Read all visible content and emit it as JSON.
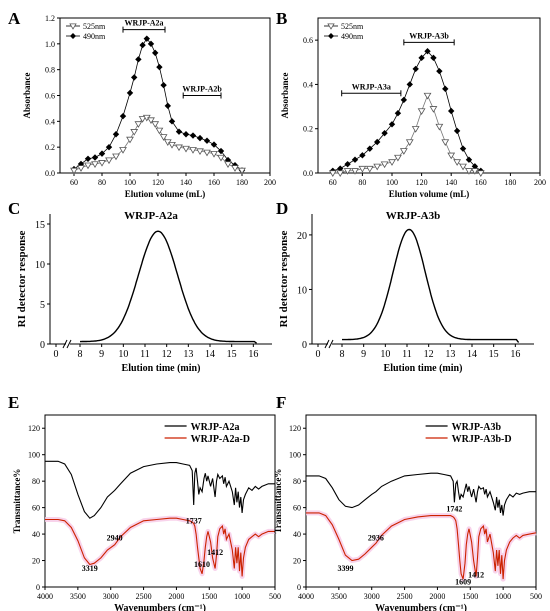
{
  "chart_data": [
    {
      "panel": "A",
      "type": "scatter-line",
      "xlabel": "Elution volume (mL)",
      "ylabel": "Absorbance",
      "xlim": [
        50,
        200
      ],
      "ylim": [
        0,
        1.2
      ],
      "xticks": [
        60,
        80,
        100,
        120,
        140,
        160,
        180,
        200
      ],
      "yticks": [
        0.0,
        0.2,
        0.4,
        0.6,
        0.8,
        1.0,
        1.2
      ],
      "legend": [
        "525nm",
        "490nm"
      ],
      "legend_placement": "top-left",
      "annotations": [
        {
          "text": "WRJP-A2a",
          "x": [
            95,
            125
          ],
          "y": 1.11
        },
        {
          "text": "WRJP-A2b",
          "x": [
            138,
            165
          ],
          "y": 0.6
        }
      ],
      "series": [
        {
          "name": "490nm",
          "marker": "diamond",
          "x": [
            60,
            65,
            70,
            75,
            80,
            85,
            90,
            95,
            100,
            103,
            106,
            109,
            112,
            115,
            118,
            121,
            124,
            127,
            130,
            135,
            140,
            145,
            150,
            155,
            160,
            165,
            170,
            175,
            180
          ],
          "y": [
            0.03,
            0.07,
            0.11,
            0.12,
            0.15,
            0.2,
            0.3,
            0.44,
            0.62,
            0.74,
            0.88,
            0.99,
            1.04,
            1.0,
            0.93,
            0.82,
            0.68,
            0.52,
            0.4,
            0.32,
            0.3,
            0.29,
            0.27,
            0.25,
            0.22,
            0.17,
            0.1,
            0.06,
            0.02
          ]
        },
        {
          "name": "525nm",
          "marker": "triangle-down",
          "x": [
            60,
            65,
            70,
            75,
            80,
            85,
            90,
            95,
            100,
            103,
            106,
            109,
            112,
            115,
            118,
            121,
            124,
            127,
            130,
            135,
            140,
            145,
            150,
            155,
            160,
            165,
            170,
            175,
            180
          ],
          "y": [
            0.02,
            0.04,
            0.06,
            0.07,
            0.08,
            0.1,
            0.13,
            0.18,
            0.26,
            0.32,
            0.38,
            0.42,
            0.43,
            0.41,
            0.38,
            0.33,
            0.28,
            0.24,
            0.22,
            0.2,
            0.19,
            0.18,
            0.17,
            0.16,
            0.15,
            0.12,
            0.07,
            0.04,
            0.02
          ]
        }
      ]
    },
    {
      "panel": "B",
      "type": "scatter-line",
      "xlabel": "Elution volume (mL)",
      "ylabel": "Absorbance",
      "xlim": [
        50,
        200
      ],
      "ylim": [
        0,
        0.7
      ],
      "xticks": [
        60,
        80,
        100,
        120,
        140,
        160,
        180,
        200
      ],
      "yticks": [
        0.0,
        0.2,
        0.4,
        0.6
      ],
      "legend": [
        "525nm",
        "490nm"
      ],
      "legend_placement": "top-left",
      "annotations": [
        {
          "text": "WRJP-A3a",
          "x": [
            66,
            106
          ],
          "y": 0.36
        },
        {
          "text": "WRJP-A3b",
          "x": [
            108,
            142
          ],
          "y": 0.59
        }
      ],
      "series": [
        {
          "name": "490nm",
          "marker": "diamond",
          "x": [
            60,
            65,
            70,
            75,
            80,
            85,
            90,
            95,
            100,
            104,
            108,
            112,
            116,
            120,
            124,
            128,
            132,
            136,
            140,
            144,
            148,
            152,
            156,
            160
          ],
          "y": [
            0.01,
            0.02,
            0.04,
            0.06,
            0.08,
            0.11,
            0.14,
            0.18,
            0.22,
            0.27,
            0.33,
            0.4,
            0.47,
            0.52,
            0.55,
            0.52,
            0.46,
            0.38,
            0.28,
            0.19,
            0.11,
            0.06,
            0.03,
            0.01
          ]
        },
        {
          "name": "525nm",
          "marker": "triangle-down",
          "x": [
            60,
            65,
            70,
            75,
            80,
            85,
            90,
            95,
            100,
            104,
            108,
            112,
            116,
            120,
            124,
            128,
            132,
            136,
            140,
            144,
            148,
            152,
            156,
            160
          ],
          "y": [
            0.0,
            0.0,
            0.01,
            0.01,
            0.02,
            0.02,
            0.03,
            0.04,
            0.05,
            0.07,
            0.1,
            0.14,
            0.2,
            0.28,
            0.35,
            0.29,
            0.21,
            0.14,
            0.08,
            0.05,
            0.03,
            0.01,
            0.01,
            0.0
          ]
        }
      ]
    },
    {
      "panel": "C",
      "type": "line",
      "title": "WRJP-A2a",
      "xlabel": "Elution time (min)",
      "ylabel": "RI detector response",
      "ylim": [
        0,
        15
      ],
      "yticks": [
        0,
        5,
        10,
        15
      ],
      "xticks": [
        "0",
        "8",
        "9",
        "10",
        "11",
        "12",
        "13",
        "14",
        "15",
        "16"
      ],
      "axis_break": "between 0 and 8",
      "peak": {
        "x": 11.6,
        "y": 13.8,
        "sigma": 0.9,
        "baseline": 0.3,
        "x_range": [
          8,
          16.2
        ]
      }
    },
    {
      "panel": "D",
      "type": "line",
      "title": "WRJP-A3b",
      "xlabel": "Elution time (min)",
      "ylabel": "RI detector response",
      "ylim": [
        0,
        22
      ],
      "yticks": [
        0,
        10,
        20
      ],
      "xticks": [
        "0",
        "8",
        "9",
        "10",
        "11",
        "12",
        "13",
        "14",
        "15",
        "16"
      ],
      "axis_break": "between 0 and 8",
      "peak": {
        "x": 11.1,
        "y": 20.2,
        "sigma": 0.75,
        "baseline": 0.8,
        "x_range": [
          8,
          16.2
        ]
      }
    },
    {
      "panel": "E",
      "type": "line",
      "xlabel": "Wavenumbers (cm⁻¹)",
      "ylabel": "Transmittance%",
      "xlim": [
        4000,
        500
      ],
      "ylim": [
        0,
        130
      ],
      "xticks": [
        4000,
        3500,
        3000,
        2500,
        2000,
        1500,
        1000,
        500
      ],
      "yticks": [
        0,
        20,
        40,
        60,
        80,
        100,
        120
      ],
      "legend": [
        "WRJP-A2a",
        "WRJP-A2a-D"
      ],
      "legend_placement": "top-right",
      "annotations": [
        {
          "text": "3319",
          "x": 3319,
          "y": 12
        },
        {
          "text": "2940",
          "x": 2940,
          "y": 35
        },
        {
          "text": "1737",
          "x": 1737,
          "y": 48
        },
        {
          "text": "1610",
          "x": 1610,
          "y": 15
        },
        {
          "text": "1412",
          "x": 1412,
          "y": 24
        }
      ],
      "series": [
        {
          "name": "WRJP-A2a",
          "color": "#000000",
          "x": [
            4000,
            3800,
            3700,
            3600,
            3500,
            3400,
            3319,
            3250,
            3150,
            3050,
            2940,
            2850,
            2700,
            2500,
            2300,
            2100,
            2000,
            1900,
            1800,
            1760,
            1737,
            1720,
            1700,
            1680,
            1660,
            1640,
            1610,
            1580,
            1560,
            1540,
            1520,
            1480,
            1450,
            1412,
            1390,
            1370,
            1340,
            1300,
            1280,
            1260,
            1240,
            1200,
            1150,
            1120,
            1100,
            1080,
            1060,
            1040,
            1020,
            1000,
            980,
            950,
            900,
            850,
            800,
            750,
            700,
            600,
            500
          ],
          "y": [
            95,
            95,
            93,
            85,
            70,
            57,
            52,
            54,
            60,
            68,
            73,
            78,
            86,
            91,
            93,
            94,
            94,
            93,
            92,
            88,
            62,
            86,
            90,
            80,
            70,
            75,
            72,
            82,
            86,
            80,
            84,
            76,
            82,
            68,
            80,
            85,
            82,
            84,
            78,
            83,
            76,
            80,
            72,
            62,
            75,
            64,
            72,
            60,
            68,
            56,
            66,
            70,
            75,
            73,
            76,
            74,
            76,
            78,
            78
          ]
        },
        {
          "name": "WRJP-A2a-D",
          "color": "#cc2200",
          "x": [
            4000,
            3800,
            3700,
            3600,
            3500,
            3400,
            3319,
            3250,
            3150,
            3050,
            2940,
            2850,
            2700,
            2500,
            2300,
            2100,
            2000,
            1900,
            1800,
            1760,
            1737,
            1720,
            1700,
            1680,
            1660,
            1640,
            1610,
            1580,
            1560,
            1540,
            1520,
            1480,
            1450,
            1412,
            1390,
            1370,
            1340,
            1300,
            1280,
            1260,
            1240,
            1200,
            1150,
            1120,
            1100,
            1080,
            1060,
            1040,
            1020,
            1000,
            980,
            950,
            900,
            850,
            800,
            750,
            700,
            600,
            500
          ],
          "y": [
            51,
            51,
            50,
            45,
            35,
            22,
            17,
            18,
            22,
            28,
            32,
            38,
            45,
            50,
            51,
            52,
            52,
            51,
            50,
            49,
            48,
            46,
            40,
            30,
            22,
            14,
            10,
            20,
            30,
            38,
            42,
            34,
            22,
            14,
            24,
            38,
            44,
            46,
            40,
            44,
            36,
            40,
            28,
            14,
            30,
            18,
            30,
            12,
            26,
            8,
            22,
            30,
            36,
            38,
            40,
            38,
            40,
            42,
            42
          ]
        }
      ]
    },
    {
      "panel": "F",
      "type": "line",
      "xlabel": "Wavenumbers (cm⁻¹)",
      "ylabel": "Transmittance%",
      "xlim": [
        4000,
        500
      ],
      "ylim": [
        0,
        130
      ],
      "xticks": [
        4000,
        3500,
        3000,
        2500,
        2000,
        1500,
        1000,
        500
      ],
      "yticks": [
        0,
        20,
        40,
        60,
        80,
        100,
        120
      ],
      "legend": [
        "WRJP-A3b",
        "WRJP-A3b-D"
      ],
      "legend_placement": "top-right",
      "annotations": [
        {
          "text": "3399",
          "x": 3399,
          "y": 12
        },
        {
          "text": "2936",
          "x": 2936,
          "y": 35
        },
        {
          "text": "1742",
          "x": 1742,
          "y": 57
        },
        {
          "text": "1609",
          "x": 1609,
          "y": 2
        },
        {
          "text": "1412",
          "x": 1412,
          "y": 7
        }
      ],
      "series": [
        {
          "name": "WRJP-A3b",
          "color": "#000000",
          "x": [
            4000,
            3800,
            3700,
            3600,
            3500,
            3400,
            3300,
            3200,
            3100,
            3000,
            2936,
            2850,
            2700,
            2500,
            2300,
            2100,
            2000,
            1900,
            1800,
            1760,
            1742,
            1720,
            1700,
            1680,
            1660,
            1640,
            1609,
            1580,
            1560,
            1540,
            1520,
            1480,
            1450,
            1412,
            1390,
            1370,
            1340,
            1300,
            1280,
            1260,
            1240,
            1200,
            1150,
            1120,
            1100,
            1080,
            1060,
            1040,
            1020,
            1000,
            980,
            950,
            900,
            850,
            800,
            750,
            700,
            600,
            500
          ],
          "y": [
            84,
            84,
            82,
            75,
            66,
            61,
            60,
            62,
            66,
            70,
            72,
            76,
            80,
            84,
            85,
            86,
            86,
            85,
            84,
            80,
            64,
            78,
            80,
            72,
            66,
            70,
            68,
            74,
            78,
            72,
            76,
            68,
            74,
            64,
            72,
            76,
            74,
            75,
            70,
            74,
            68,
            72,
            64,
            58,
            68,
            60,
            66,
            56,
            62,
            54,
            62,
            66,
            70,
            68,
            71,
            70,
            71,
            72,
            72
          ]
        },
        {
          "name": "WRJP-A3b-D",
          "color": "#cc2200",
          "x": [
            4000,
            3800,
            3700,
            3600,
            3500,
            3400,
            3300,
            3200,
            3100,
            3000,
            2936,
            2850,
            2700,
            2500,
            2300,
            2100,
            2000,
            1900,
            1800,
            1760,
            1742,
            1720,
            1700,
            1680,
            1660,
            1640,
            1609,
            1580,
            1560,
            1540,
            1520,
            1480,
            1450,
            1412,
            1390,
            1370,
            1340,
            1300,
            1280,
            1260,
            1240,
            1200,
            1150,
            1120,
            1100,
            1080,
            1060,
            1040,
            1020,
            1000,
            980,
            950,
            900,
            850,
            800,
            750,
            700,
            600,
            500
          ],
          "y": [
            56,
            56,
            54,
            47,
            36,
            24,
            20,
            21,
            25,
            30,
            33,
            39,
            46,
            51,
            53,
            54,
            54,
            54,
            54,
            53,
            52,
            50,
            44,
            32,
            20,
            10,
            6,
            18,
            32,
            40,
            44,
            34,
            20,
            8,
            22,
            38,
            44,
            46,
            40,
            44,
            34,
            40,
            26,
            12,
            28,
            16,
            28,
            10,
            24,
            6,
            20,
            28,
            34,
            37,
            39,
            37,
            39,
            40,
            41
          ]
        }
      ]
    }
  ]
}
